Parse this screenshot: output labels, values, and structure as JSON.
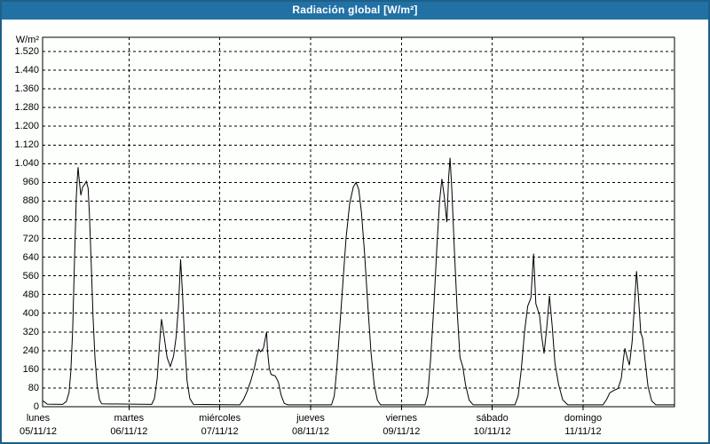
{
  "window": {
    "title": "Radiación global [W/m²]"
  },
  "colors": {
    "titlebar_bg": "#2171a5",
    "titlebar_text": "#ffffff",
    "frame_border": "#1d5f87",
    "page_bg": "#fdfffd",
    "grid_line": "#000000",
    "plot_line": "#000000",
    "label_text": "#000000"
  },
  "chart_data": {
    "type": "line",
    "title": "Radiación global [W/m²]",
    "ylabel": "W/m²",
    "xlabel": "",
    "ylim": [
      0,
      1580
    ],
    "ytick_interval": 80,
    "grid": "dashed",
    "legend": "none",
    "yticks": [
      [
        0,
        "0"
      ],
      [
        80,
        "80"
      ],
      [
        160,
        "160"
      ],
      [
        240,
        "240"
      ],
      [
        320,
        "320"
      ],
      [
        400,
        "400"
      ],
      [
        480,
        "480"
      ],
      [
        560,
        "560"
      ],
      [
        640,
        "640"
      ],
      [
        720,
        "720"
      ],
      [
        800,
        "800"
      ],
      [
        880,
        "880"
      ],
      [
        960,
        "960"
      ],
      [
        1040,
        "1.040"
      ],
      [
        1120,
        "1.120"
      ],
      [
        1200,
        "1.200"
      ],
      [
        1280,
        "1.280"
      ],
      [
        1360,
        "1.360"
      ],
      [
        1440,
        "1.440"
      ],
      [
        1520,
        "1.520"
      ]
    ],
    "days": [
      {
        "name": "lunes",
        "date": "05/11/12"
      },
      {
        "name": "martes",
        "date": "06/11/12"
      },
      {
        "name": "miércoles",
        "date": "07/11/12"
      },
      {
        "name": "jueves",
        "date": "08/11/12"
      },
      {
        "name": "viernes",
        "date": "09/11/12"
      },
      {
        "name": "sábado",
        "date": "10/11/12"
      },
      {
        "name": "domingo",
        "date": "11/11/12"
      }
    ],
    "series": [
      {
        "name": "Radiación global",
        "unit": "W/m²",
        "x_unit": "days (0 = lunes 05/11/12 00:00)",
        "points": [
          [
            0.05,
            25
          ],
          [
            0.07,
            20
          ],
          [
            0.1,
            11
          ],
          [
            0.27,
            10
          ],
          [
            0.31,
            22
          ],
          [
            0.34,
            60
          ],
          [
            0.36,
            150
          ],
          [
            0.38,
            330
          ],
          [
            0.4,
            620
          ],
          [
            0.42,
            900
          ],
          [
            0.435,
            1000
          ],
          [
            0.44,
            1025
          ],
          [
            0.45,
            980
          ],
          [
            0.47,
            905
          ],
          [
            0.49,
            940
          ],
          [
            0.51,
            950
          ],
          [
            0.53,
            965
          ],
          [
            0.55,
            935
          ],
          [
            0.565,
            820
          ],
          [
            0.585,
            600
          ],
          [
            0.605,
            380
          ],
          [
            0.625,
            210
          ],
          [
            0.65,
            90
          ],
          [
            0.675,
            30
          ],
          [
            0.7,
            12
          ],
          [
            1.25,
            10
          ],
          [
            1.28,
            35
          ],
          [
            1.31,
            120
          ],
          [
            1.335,
            260
          ],
          [
            1.358,
            375
          ],
          [
            1.38,
            320
          ],
          [
            1.42,
            210
          ],
          [
            1.455,
            172
          ],
          [
            1.49,
            215
          ],
          [
            1.52,
            300
          ],
          [
            1.545,
            430
          ],
          [
            1.568,
            630
          ],
          [
            1.59,
            480
          ],
          [
            1.615,
            260
          ],
          [
            1.64,
            110
          ],
          [
            1.67,
            35
          ],
          [
            1.71,
            10
          ],
          [
            2.22,
            8
          ],
          [
            2.26,
            30
          ],
          [
            2.3,
            65
          ],
          [
            2.34,
            110
          ],
          [
            2.38,
            165
          ],
          [
            2.41,
            220
          ],
          [
            2.43,
            245
          ],
          [
            2.45,
            235
          ],
          [
            2.48,
            250
          ],
          [
            2.505,
            300
          ],
          [
            2.515,
            320
          ],
          [
            2.525,
            240
          ],
          [
            2.545,
            165
          ],
          [
            2.565,
            138
          ],
          [
            2.61,
            132
          ],
          [
            2.645,
            105
          ],
          [
            2.675,
            50
          ],
          [
            2.71,
            14
          ],
          [
            2.75,
            8
          ],
          [
            3.23,
            8
          ],
          [
            3.26,
            45
          ],
          [
            3.285,
            150
          ],
          [
            3.31,
            280
          ],
          [
            3.35,
            500
          ],
          [
            3.39,
            720
          ],
          [
            3.43,
            870
          ],
          [
            3.47,
            940
          ],
          [
            3.5,
            960
          ],
          [
            3.53,
            930
          ],
          [
            3.56,
            830
          ],
          [
            3.595,
            650
          ],
          [
            3.63,
            430
          ],
          [
            3.665,
            230
          ],
          [
            3.7,
            95
          ],
          [
            3.735,
            28
          ],
          [
            3.77,
            8
          ],
          [
            4.26,
            8
          ],
          [
            4.29,
            50
          ],
          [
            4.32,
            200
          ],
          [
            4.355,
            420
          ],
          [
            4.39,
            680
          ],
          [
            4.42,
            880
          ],
          [
            4.445,
            975
          ],
          [
            4.47,
            905
          ],
          [
            4.5,
            790
          ],
          [
            4.52,
            980
          ],
          [
            4.535,
            1065
          ],
          [
            4.555,
            930
          ],
          [
            4.585,
            650
          ],
          [
            4.615,
            400
          ],
          [
            4.645,
            210
          ],
          [
            4.675,
            172
          ],
          [
            4.705,
            95
          ],
          [
            4.745,
            28
          ],
          [
            4.79,
            8
          ],
          [
            5.25,
            8
          ],
          [
            5.285,
            45
          ],
          [
            5.32,
            160
          ],
          [
            5.355,
            320
          ],
          [
            5.39,
            430
          ],
          [
            5.425,
            465
          ],
          [
            5.455,
            655
          ],
          [
            5.48,
            440
          ],
          [
            5.52,
            392
          ],
          [
            5.545,
            300
          ],
          [
            5.57,
            228
          ],
          [
            5.6,
            340
          ],
          [
            5.63,
            475
          ],
          [
            5.66,
            345
          ],
          [
            5.69,
            185
          ],
          [
            5.73,
            95
          ],
          [
            5.775,
            30
          ],
          [
            5.83,
            8
          ],
          [
            6.22,
            8
          ],
          [
            6.26,
            32
          ],
          [
            6.295,
            60
          ],
          [
            6.34,
            70
          ],
          [
            6.385,
            78
          ],
          [
            6.42,
            120
          ],
          [
            6.445,
            205
          ],
          [
            6.46,
            250
          ],
          [
            6.49,
            205
          ],
          [
            6.51,
            178
          ],
          [
            6.54,
            280
          ],
          [
            6.565,
            430
          ],
          [
            6.588,
            580
          ],
          [
            6.61,
            470
          ],
          [
            6.635,
            315
          ],
          [
            6.655,
            295
          ],
          [
            6.685,
            190
          ],
          [
            6.715,
            85
          ],
          [
            6.755,
            25
          ],
          [
            6.8,
            8
          ],
          [
            7.03,
            8
          ]
        ]
      }
    ]
  }
}
